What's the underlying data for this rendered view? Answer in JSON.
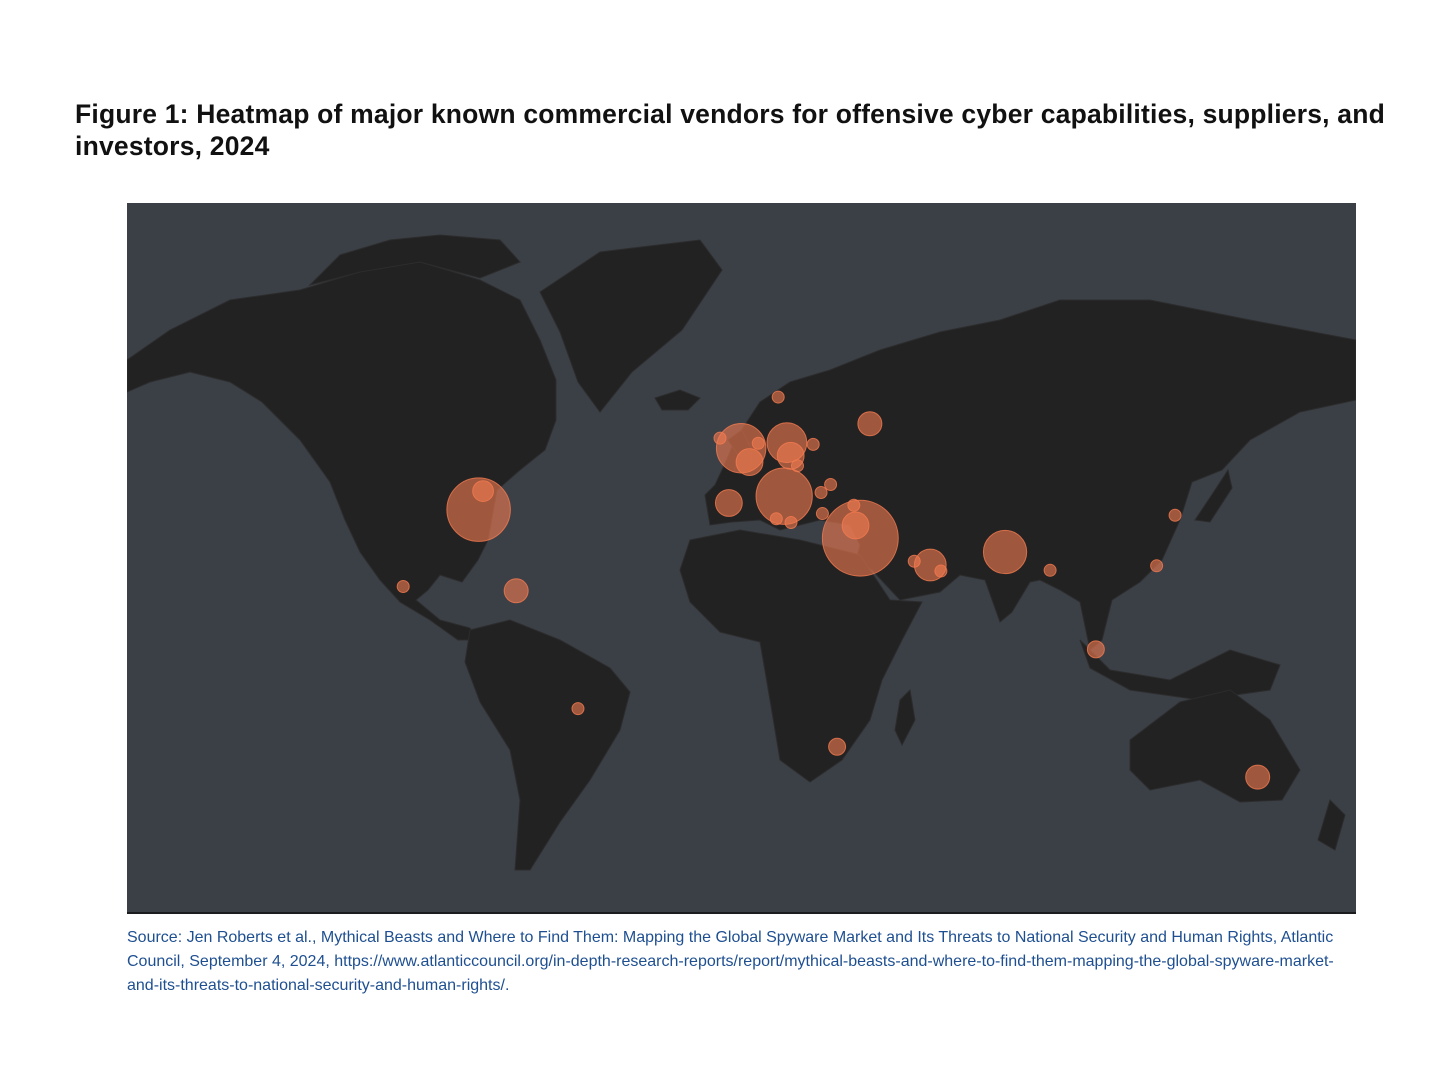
{
  "title": "Figure 1: Heatmap of major known commercial vendors for offensive cyber capabilities, suppliers, and investors, 2024",
  "source": "Source: Jen Roberts et al., Mythical Beasts and Where to Find Them: Mapping the Global Spyware Market and Its Threats to National Security and Human Rights, Atlantic Council, September 4, 2024, https://www.atlanticcouncil.org/in-depth-research-reports/report/mythical-beasts-and-where-to-find-them-mapping-the-global-spyware-market-and-its-threats-to-national-security-and-human-rights/.",
  "map": {
    "color": "#f47b50",
    "points": [
      {
        "lon": -77,
        "lat": 38.9,
        "value": 28
      },
      {
        "lon": -75.7,
        "lat": 43,
        "value": 3
      },
      {
        "lon": -99.1,
        "lat": 19.4,
        "value": 1
      },
      {
        "lon": -66,
        "lat": 18.2,
        "value": 4
      },
      {
        "lon": -47.9,
        "lat": -15.8,
        "value": 1
      },
      {
        "lon": -0.1,
        "lat": 51.5,
        "value": 17
      },
      {
        "lon": -6.3,
        "lat": 53.3,
        "value": 1
      },
      {
        "lon": 2.35,
        "lat": 48.9,
        "value": 5
      },
      {
        "lon": -3.7,
        "lat": 40.4,
        "value": 5
      },
      {
        "lon": 12.5,
        "lat": 41.9,
        "value": 22
      },
      {
        "lon": 13.3,
        "lat": 52.5,
        "value": 11
      },
      {
        "lon": 14.4,
        "lat": 50.1,
        "value": 5
      },
      {
        "lon": 16.4,
        "lat": 48.2,
        "value": 1
      },
      {
        "lon": 21,
        "lat": 52.2,
        "value": 1
      },
      {
        "lon": 10.75,
        "lat": 59.9,
        "value": 1
      },
      {
        "lon": 4.9,
        "lat": 52.4,
        "value": 1
      },
      {
        "lon": 37.6,
        "lat": 55.75,
        "value": 4
      },
      {
        "lon": 34.8,
        "lat": 32.1,
        "value": 40
      },
      {
        "lon": 33.4,
        "lat": 35.2,
        "value": 5
      },
      {
        "lon": 32.9,
        "lat": 39.9,
        "value": 1
      },
      {
        "lon": 23.7,
        "lat": 38,
        "value": 1
      },
      {
        "lon": 23.3,
        "lat": 42.7,
        "value": 1
      },
      {
        "lon": 26.1,
        "lat": 44.4,
        "value": 1
      },
      {
        "lon": 10.2,
        "lat": 36.8,
        "value": 1
      },
      {
        "lon": 14.5,
        "lat": 35.9,
        "value": 1
      },
      {
        "lon": 55.3,
        "lat": 25.2,
        "value": 7
      },
      {
        "lon": 50.6,
        "lat": 26.2,
        "value": 1
      },
      {
        "lon": 58.4,
        "lat": 23.6,
        "value": 1
      },
      {
        "lon": 77.2,
        "lat": 28.6,
        "value": 13
      },
      {
        "lon": 90.4,
        "lat": 23.8,
        "value": 1
      },
      {
        "lon": 121.6,
        "lat": 25,
        "value": 1
      },
      {
        "lon": 127,
        "lat": 37.6,
        "value": 1
      },
      {
        "lon": 103.8,
        "lat": 1.35,
        "value": 2
      },
      {
        "lon": 28,
        "lat": -26.2,
        "value": 2
      },
      {
        "lon": 151.2,
        "lat": -33.9,
        "value": 4
      }
    ]
  }
}
